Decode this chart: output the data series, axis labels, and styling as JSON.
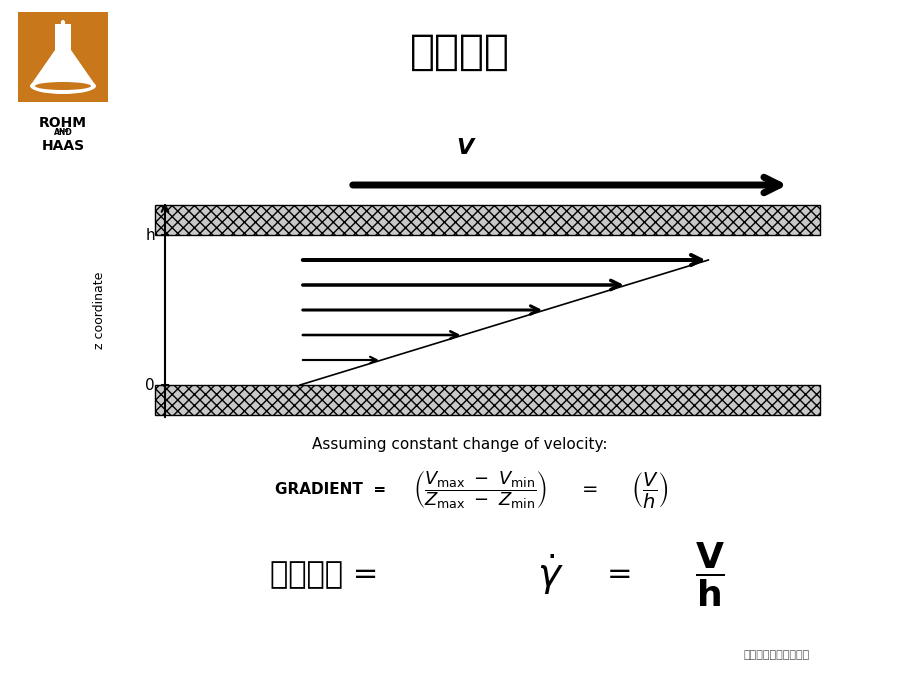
{
  "title": "剪切速率",
  "bg_color": "#ffffff",
  "title_fontsize": 30,
  "rohm_haas_logo_color": "#c8781a",
  "plate_hatch_facecolor": "#c8c8c8",
  "plate_hatch_pattern": "xxx",
  "text_assuming": "Assuming constant change of velocity:",
  "copyright": "罗门哈斯公司版权所有",
  "z_coord_label": "z coordinate",
  "bottom_chinese": "剪切速率"
}
